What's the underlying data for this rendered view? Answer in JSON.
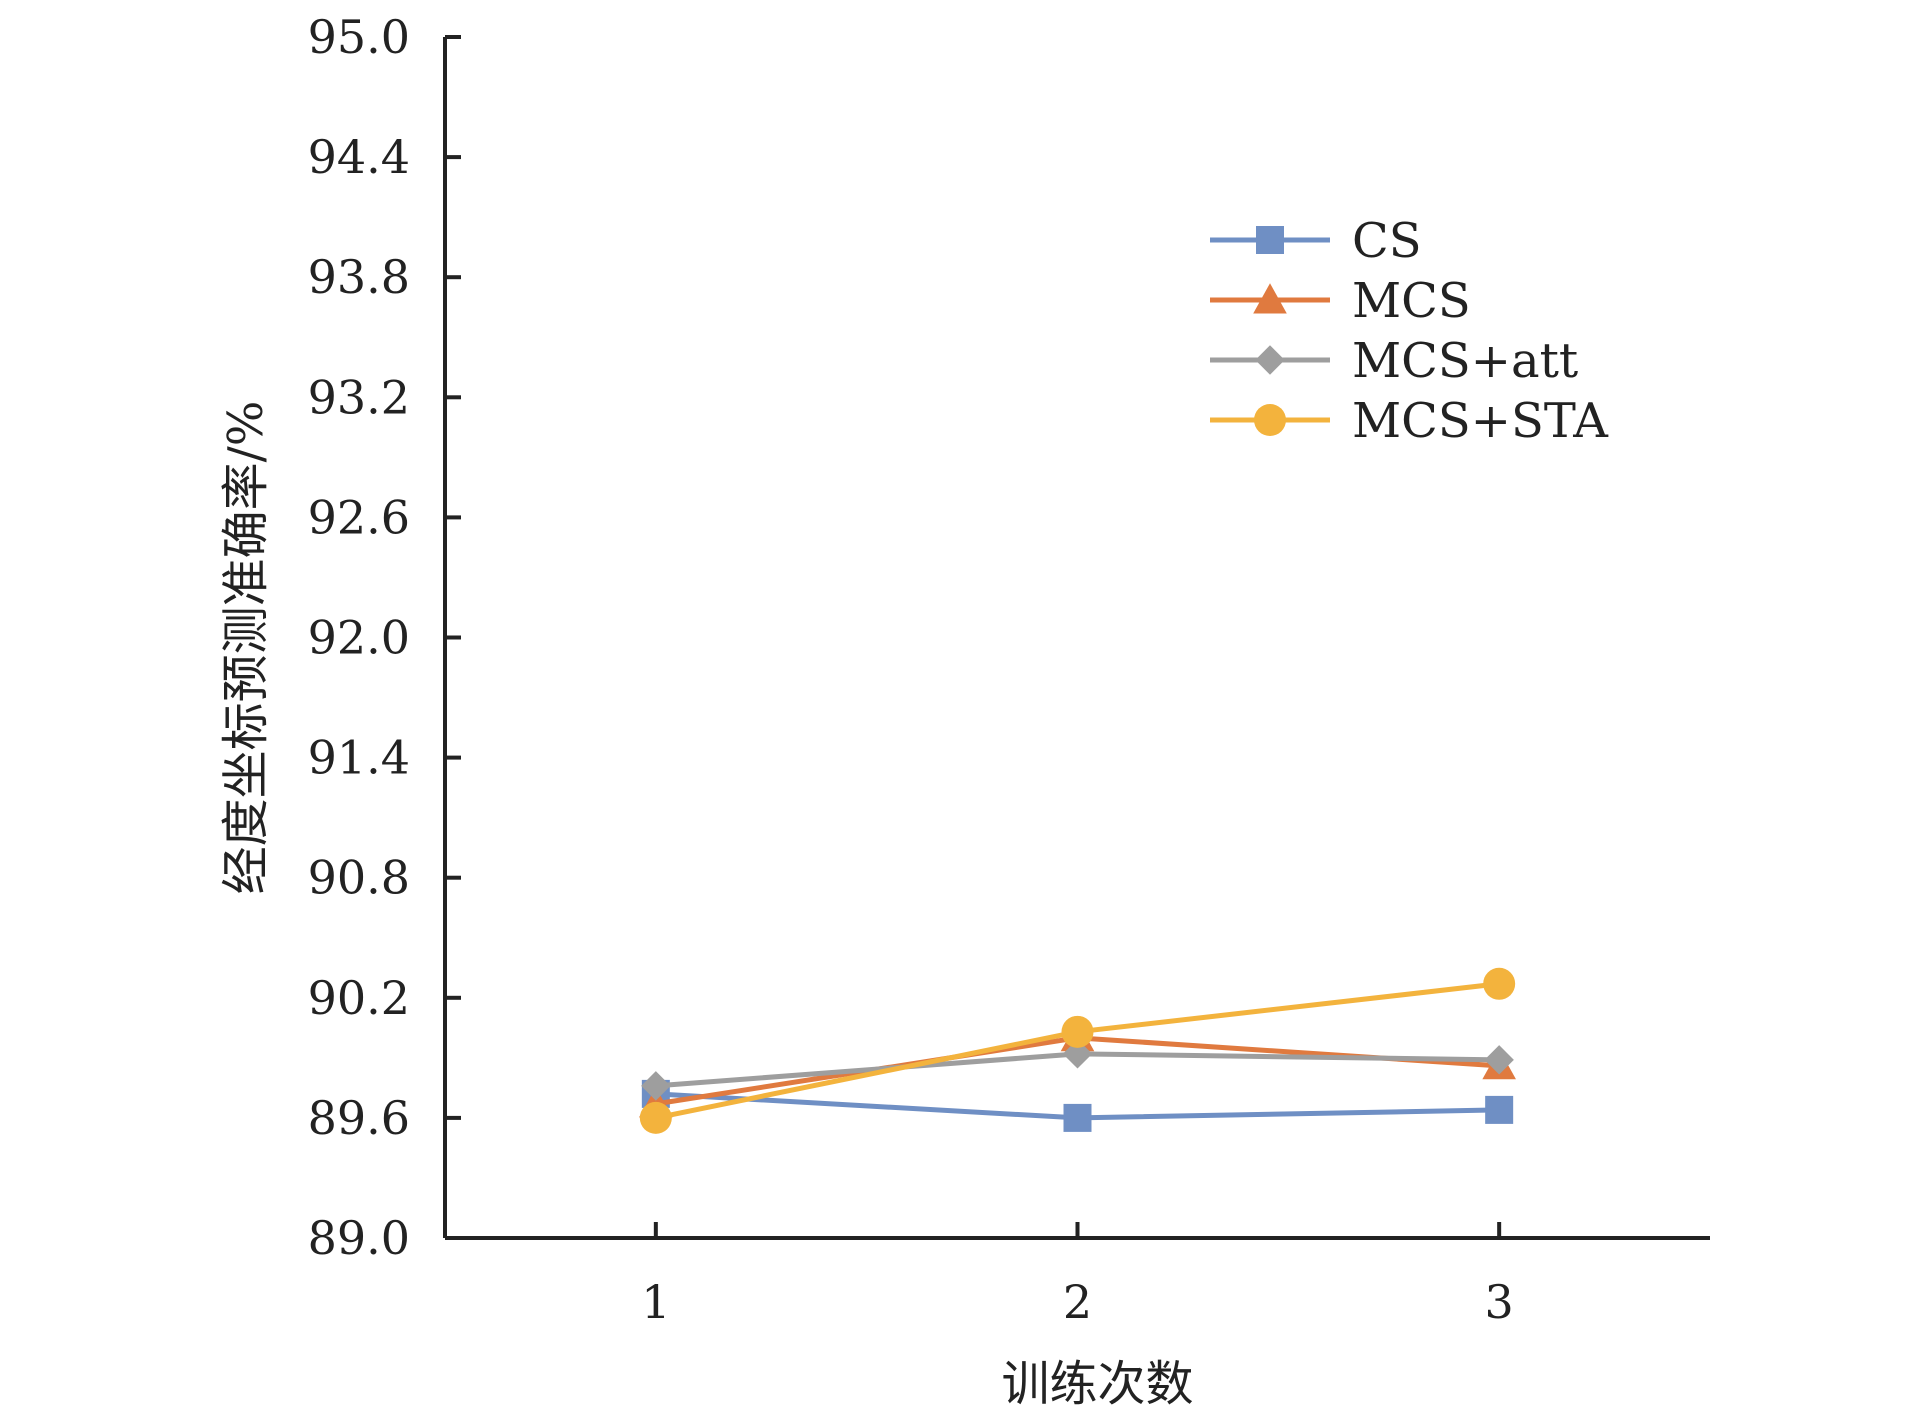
{
  "chart_data": {
    "type": "line",
    "xlabel": "训练次数",
    "ylabel": "经度坐标预测准确率/%",
    "x": [
      1,
      2,
      3
    ],
    "x_ticks": [
      "1",
      "2",
      "3"
    ],
    "xlim": [
      0.5,
      3.5
    ],
    "ylim": [
      89.0,
      95.0
    ],
    "y_ticks": [
      "89.0",
      "89.6",
      "90.2",
      "90.8",
      "91.4",
      "92.0",
      "92.6",
      "93.2",
      "93.8",
      "94.4",
      "95.0"
    ],
    "grid": false,
    "legend_position": "top-right",
    "series": [
      {
        "name": "CS",
        "values": [
          89.72,
          89.6,
          89.64
        ],
        "color": "#6f8fc4",
        "marker": "square"
      },
      {
        "name": "MCS",
        "values": [
          89.67,
          90.0,
          89.86
        ],
        "color": "#e07a3f",
        "marker": "triangle"
      },
      {
        "name": "MCS+att",
        "values": [
          89.76,
          89.92,
          89.89
        ],
        "color": "#9e9e9e",
        "marker": "diamond"
      },
      {
        "name": "MCS+STA",
        "values": [
          89.6,
          90.03,
          90.27
        ],
        "color": "#f3b33d",
        "marker": "circle"
      }
    ]
  }
}
